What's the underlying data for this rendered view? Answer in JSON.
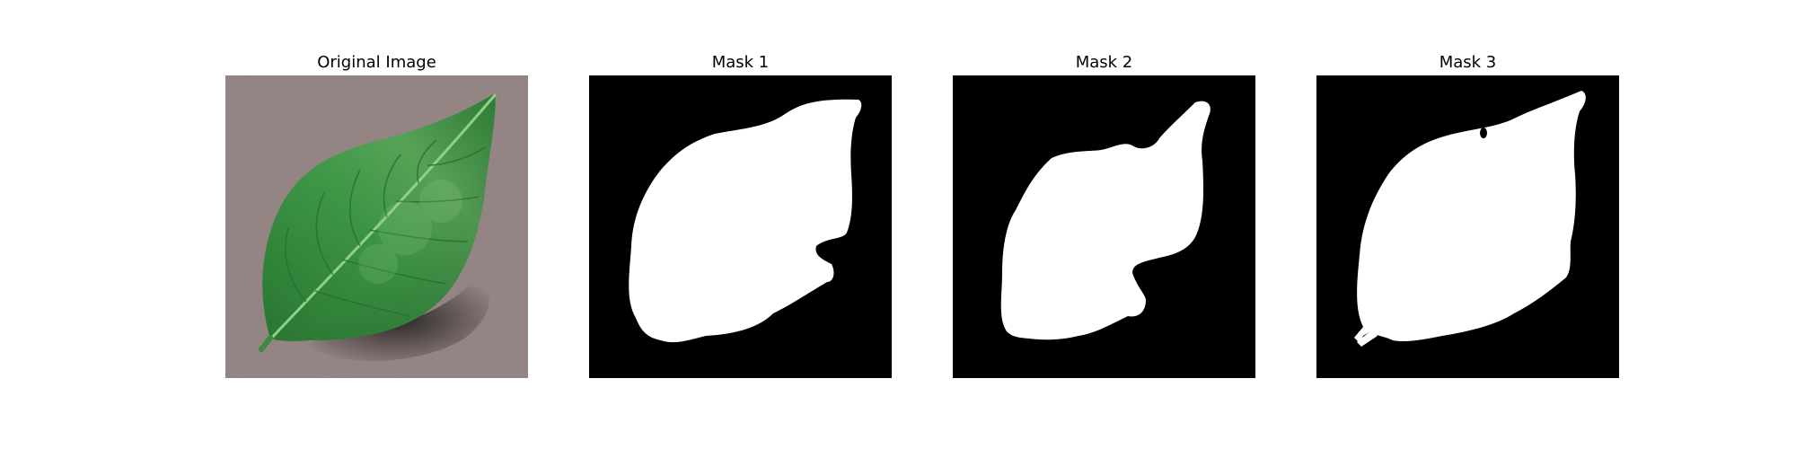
{
  "figure": {
    "panels": [
      {
        "title": "Original Image",
        "kind": "photo",
        "subject": "green-leaf-on-gray-background"
      },
      {
        "title": "Mask 1",
        "kind": "binary-mask"
      },
      {
        "title": "Mask 2",
        "kind": "binary-mask"
      },
      {
        "title": "Mask 3",
        "kind": "binary-mask"
      }
    ]
  },
  "colors": {
    "background": "#ffffff",
    "photo_background": "#9a8a8a",
    "leaf_dark": "#1f6a2b",
    "leaf_mid": "#3f9a48",
    "leaf_light": "#7cc07a",
    "mask_foreground": "#ffffff",
    "mask_background": "#000000"
  }
}
